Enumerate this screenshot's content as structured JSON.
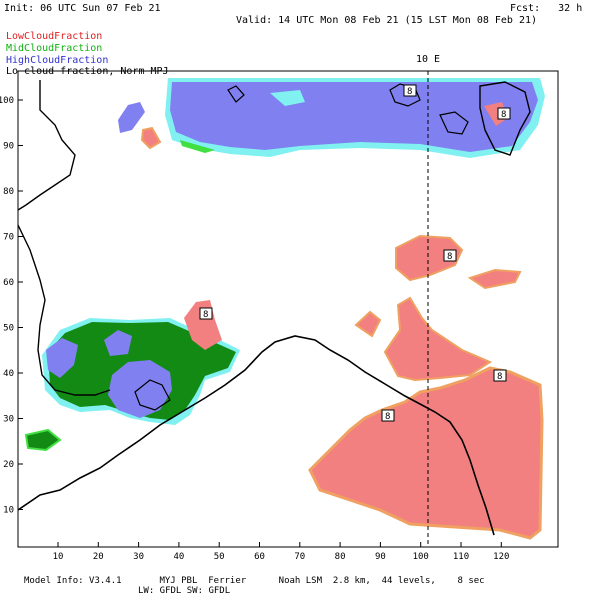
{
  "header": {
    "init": "Init: 06 UTC Sun 07 Feb 21",
    "fcst": "Fcst:   32 h",
    "valid": "Valid: 14 UTC Mon 08 Feb 21 (15 LST Mon 08 Feb 21)"
  },
  "legend": {
    "low": "LowCloudFraction",
    "mid": "MidCloudFraction",
    "high": "HighCloudFraction",
    "contour": "Lo cloud fraction, Norm MPJ"
  },
  "colors": {
    "low": "#f28080",
    "mid": "#138a13",
    "high": "#8080f0",
    "cyan": "#80f0f0",
    "lightgreen": "#40e040",
    "orange": "#f0a060"
  },
  "meridian_label": "10 E",
  "box_label": "8",
  "axes": {
    "x_ticks": [
      "10",
      "20",
      "30",
      "40",
      "50",
      "60",
      "70",
      "80",
      "90",
      "100",
      "110",
      "120"
    ],
    "y_ticks": [
      "100",
      "90",
      "80",
      "70",
      "60",
      "50",
      "40",
      "30",
      "20",
      "10"
    ]
  },
  "footer": {
    "line1": "Model Info: V3.4.1       MYJ PBL  Ferrier      Noah LSM  2.8 km,  44 levels,    8 sec",
    "line2": "LW: GFDL SW: GFDL"
  }
}
